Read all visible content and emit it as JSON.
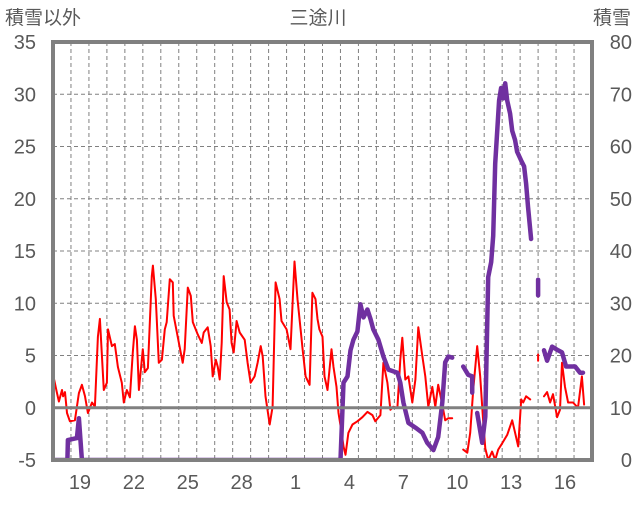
{
  "chart_data": {
    "type": "line",
    "title": "三途川",
    "ylabel_left": "積雪以外",
    "ylabel_right": "積雪",
    "x_unit": "days since first plotted day (day 18)",
    "x_range": [
      0,
      30
    ],
    "ylim_left": [
      -5,
      35
    ],
    "ylim_right": [
      0,
      80
    ],
    "yticks_left": [
      "35",
      "30",
      "25",
      "20",
      "15",
      "10",
      "5",
      "0",
      "-5"
    ],
    "yticks_right": [
      "80",
      "70",
      "60",
      "50",
      "40",
      "30",
      "20",
      "10",
      "0"
    ],
    "xtick_labels": [
      {
        "label": "19",
        "day": 1
      },
      {
        "label": "22",
        "day": 4
      },
      {
        "label": "25",
        "day": 7
      },
      {
        "label": "28",
        "day": 10
      },
      {
        "label": "1",
        "day": 13
      },
      {
        "label": "4",
        "day": 16
      },
      {
        "label": "7",
        "day": 19
      },
      {
        "label": "10",
        "day": 22
      },
      {
        "label": "13",
        "day": 25
      },
      {
        "label": "16",
        "day": 28
      }
    ],
    "grid": true,
    "colors": {
      "temperature": "#ff0000",
      "snow": "#7030a0",
      "axis": "#808080",
      "grid": "#808080",
      "text": "#595959"
    },
    "series": [
      {
        "name": "積雪以外",
        "axis": "left",
        "color": "#ff0000",
        "points": [
          [
            0.06,
            2.7
          ],
          [
            0.22,
            1.4
          ],
          [
            0.33,
            0.6
          ],
          [
            0.5,
            1.7
          ],
          [
            0.56,
            1.1
          ],
          [
            0.67,
            1.5
          ],
          [
            0.78,
            -0.5
          ],
          [
            0.94,
            -1.3
          ],
          [
            1.22,
            -1.2
          ],
          [
            1.44,
            1.4
          ],
          [
            1.61,
            2.2
          ],
          [
            1.78,
            1.1
          ],
          [
            1.94,
            -0.5
          ],
          [
            2.17,
            0.5
          ],
          [
            2.33,
            0.1
          ],
          [
            2.5,
            6.8
          ],
          [
            2.61,
            8.5
          ],
          [
            2.83,
            1.7
          ],
          [
            3.0,
            2.4
          ],
          [
            3.06,
            7.5
          ],
          [
            3.28,
            5.9
          ],
          [
            3.44,
            6.1
          ],
          [
            3.61,
            3.9
          ],
          [
            3.83,
            2.4
          ],
          [
            3.94,
            0.5
          ],
          [
            4.11,
            1.7
          ],
          [
            4.28,
            1.0
          ],
          [
            4.44,
            5.3
          ],
          [
            4.56,
            7.8
          ],
          [
            4.67,
            6.5
          ],
          [
            4.78,
            1.7
          ],
          [
            5.0,
            5.6
          ],
          [
            5.11,
            3.4
          ],
          [
            5.28,
            3.8
          ],
          [
            5.5,
            12.6
          ],
          [
            5.56,
            13.6
          ],
          [
            5.72,
            10.4
          ],
          [
            5.89,
            4.3
          ],
          [
            6.06,
            4.6
          ],
          [
            6.22,
            7.5
          ],
          [
            6.33,
            8.2
          ],
          [
            6.5,
            12.3
          ],
          [
            6.67,
            12.0
          ],
          [
            6.72,
            8.8
          ],
          [
            6.94,
            6.8
          ],
          [
            7.22,
            4.3
          ],
          [
            7.33,
            5.6
          ],
          [
            7.5,
            11.5
          ],
          [
            7.67,
            10.7
          ],
          [
            7.78,
            8.2
          ],
          [
            7.94,
            7.5
          ],
          [
            8.06,
            7.0
          ],
          [
            8.28,
            6.2
          ],
          [
            8.39,
            7.2
          ],
          [
            8.61,
            7.7
          ],
          [
            8.78,
            5.9
          ],
          [
            8.89,
            3.0
          ],
          [
            9.06,
            4.6
          ],
          [
            9.17,
            3.9
          ],
          [
            9.28,
            2.7
          ],
          [
            9.39,
            6.2
          ],
          [
            9.5,
            12.6
          ],
          [
            9.67,
            10.1
          ],
          [
            9.83,
            9.4
          ],
          [
            9.94,
            6.2
          ],
          [
            10.06,
            5.3
          ],
          [
            10.22,
            8.3
          ],
          [
            10.39,
            7.2
          ],
          [
            10.67,
            6.5
          ],
          [
            10.83,
            4.3
          ],
          [
            11.0,
            2.4
          ],
          [
            11.22,
            3.0
          ],
          [
            11.39,
            4.3
          ],
          [
            11.56,
            5.9
          ],
          [
            11.67,
            4.9
          ],
          [
            11.83,
            1.1
          ],
          [
            12.06,
            -1.6
          ],
          [
            12.22,
            0.1
          ],
          [
            12.39,
            12.0
          ],
          [
            12.61,
            10.4
          ],
          [
            12.72,
            8.3
          ],
          [
            13.0,
            7.5
          ],
          [
            13.22,
            5.6
          ],
          [
            13.44,
            14.0
          ],
          [
            13.61,
            10.4
          ],
          [
            13.78,
            7.5
          ],
          [
            13.89,
            5.6
          ],
          [
            14.06,
            3.0
          ],
          [
            14.28,
            2.2
          ],
          [
            14.44,
            11.0
          ],
          [
            14.61,
            10.4
          ],
          [
            14.72,
            8.5
          ],
          [
            14.83,
            7.5
          ],
          [
            15.0,
            6.8
          ],
          [
            15.11,
            3.0
          ],
          [
            15.28,
            1.7
          ],
          [
            15.5,
            5.6
          ],
          [
            15.61,
            3.9
          ],
          [
            15.78,
            2.0
          ],
          [
            15.89,
            -0.5
          ],
          [
            16.06,
            -2.3
          ],
          [
            16.17,
            -3.7
          ],
          [
            16.28,
            -4.5
          ],
          [
            16.44,
            -2.4
          ],
          [
            16.67,
            -1.6
          ],
          [
            16.94,
            -1.3
          ],
          [
            17.22,
            -0.9
          ],
          [
            17.5,
            -0.4
          ],
          [
            17.78,
            -0.7
          ],
          [
            17.94,
            -1.3
          ],
          [
            18.22,
            -0.7
          ],
          [
            18.39,
            4.3
          ],
          [
            18.61,
            2.4
          ],
          [
            18.78,
            -0.2
          ],
          [
            18.94,
            0.1
          ],
          [
            19.17,
            0.0
          ],
          [
            19.33,
            4.6
          ],
          [
            19.44,
            6.7
          ],
          [
            19.61,
            2.7
          ],
          [
            19.78,
            3.0
          ],
          [
            20.0,
            0.5
          ],
          [
            20.17,
            2.7
          ],
          [
            20.33,
            7.7
          ],
          [
            20.56,
            4.9
          ],
          [
            20.72,
            3.0
          ],
          [
            20.89,
            0.1
          ],
          [
            21.11,
            2.0
          ],
          [
            21.28,
            0.1
          ],
          [
            21.44,
            2.2
          ],
          [
            21.67,
            0.3
          ],
          [
            21.83,
            -1.2
          ],
          [
            22.0,
            -1.0
          ],
          [
            22.22,
            -1.0
          ],
          null,
          [
            22.83,
            -4.0
          ],
          [
            23.06,
            -4.3
          ],
          [
            23.22,
            -2.4
          ],
          [
            23.39,
            1.7
          ],
          [
            23.61,
            5.9
          ],
          [
            23.78,
            3.0
          ],
          [
            23.94,
            -1.2
          ],
          [
            24.06,
            -3.9
          ],
          [
            24.22,
            -5.0
          ],
          [
            24.44,
            -4.2
          ],
          [
            24.61,
            -5.0
          ],
          [
            24.78,
            -4.0
          ],
          [
            25.0,
            -3.4
          ],
          [
            25.28,
            -2.6
          ],
          [
            25.56,
            -1.2
          ],
          [
            25.72,
            -2.4
          ],
          [
            25.89,
            -3.7
          ],
          [
            26.06,
            0.8
          ],
          [
            26.17,
            0.5
          ],
          [
            26.33,
            1.1
          ],
          [
            26.56,
            0.8
          ],
          null,
          [
            27.0,
            4.5
          ],
          [
            27.0,
            5.1
          ],
          null,
          [
            27.33,
            1.1
          ],
          [
            27.5,
            1.5
          ],
          [
            27.67,
            0.5
          ],
          [
            27.83,
            1.3
          ],
          [
            28.06,
            -0.9
          ],
          [
            28.22,
            -0.2
          ],
          [
            28.33,
            4.3
          ],
          [
            28.5,
            2.0
          ],
          [
            28.67,
            0.5
          ],
          [
            28.94,
            0.5
          ],
          [
            29.22,
            0.0
          ],
          [
            29.44,
            3.0
          ],
          [
            29.56,
            0.3
          ]
        ]
      },
      {
        "name": "積雪",
        "axis": "right",
        "color": "#7030a0",
        "points": [
          [
            0.0,
            0
          ],
          [
            0.8,
            0
          ],
          [
            0.83,
            3.8
          ],
          [
            1.33,
            4.2
          ],
          [
            1.44,
            8
          ],
          [
            1.61,
            0
          ],
          [
            16.0,
            0
          ],
          [
            16.17,
            14.8
          ],
          [
            16.39,
            16
          ],
          [
            16.56,
            21
          ],
          [
            16.72,
            23
          ],
          [
            16.94,
            24.6
          ],
          [
            17.11,
            29.8
          ],
          [
            17.28,
            27.3
          ],
          [
            17.5,
            28.8
          ],
          [
            17.67,
            27
          ],
          [
            17.83,
            25
          ],
          [
            18.11,
            23
          ],
          [
            18.39,
            19.8
          ],
          [
            18.67,
            17.3
          ],
          [
            19.17,
            16.7
          ],
          [
            19.33,
            14.8
          ],
          [
            19.5,
            11
          ],
          [
            19.78,
            7.1
          ],
          [
            20.17,
            6.2
          ],
          [
            20.56,
            5.2
          ],
          [
            20.83,
            3.3
          ],
          [
            21.17,
            1.9
          ],
          [
            21.44,
            4.4
          ],
          [
            21.67,
            11
          ],
          [
            21.83,
            18.7
          ],
          [
            22.0,
            19.8
          ],
          [
            22.22,
            19.6
          ],
          null,
          [
            22.83,
            17.9
          ],
          [
            23.11,
            16.3
          ],
          [
            23.33,
            16
          ],
          [
            23.33,
            12.9
          ],
          null,
          [
            23.61,
            9
          ],
          [
            23.89,
            3.3
          ],
          [
            24.06,
            8.3
          ],
          [
            24.22,
            35
          ],
          [
            24.39,
            37.9
          ],
          [
            24.5,
            42.9
          ],
          [
            24.61,
            56.7
          ],
          [
            24.83,
            68.8
          ],
          [
            24.94,
            71.2
          ],
          [
            25.06,
            69.2
          ],
          [
            25.17,
            72.1
          ],
          [
            25.28,
            68.8
          ],
          [
            25.44,
            66.3
          ],
          [
            25.56,
            63
          ],
          [
            25.72,
            61.2
          ],
          [
            25.83,
            59
          ],
          [
            26.06,
            57.3
          ],
          [
            26.22,
            56.2
          ],
          [
            26.33,
            52.9
          ],
          [
            26.44,
            48.5
          ],
          [
            26.61,
            42.3
          ],
          null,
          [
            27.0,
            31.5
          ],
          [
            27.0,
            34.5
          ],
          null,
          [
            27.33,
            21
          ],
          [
            27.5,
            19
          ],
          [
            27.78,
            21.7
          ],
          [
            28.11,
            21
          ],
          [
            28.33,
            20.6
          ],
          [
            28.56,
            17.9
          ],
          [
            29.06,
            17.9
          ],
          [
            29.33,
            16.7
          ],
          [
            29.5,
            16.7
          ]
        ]
      }
    ]
  }
}
